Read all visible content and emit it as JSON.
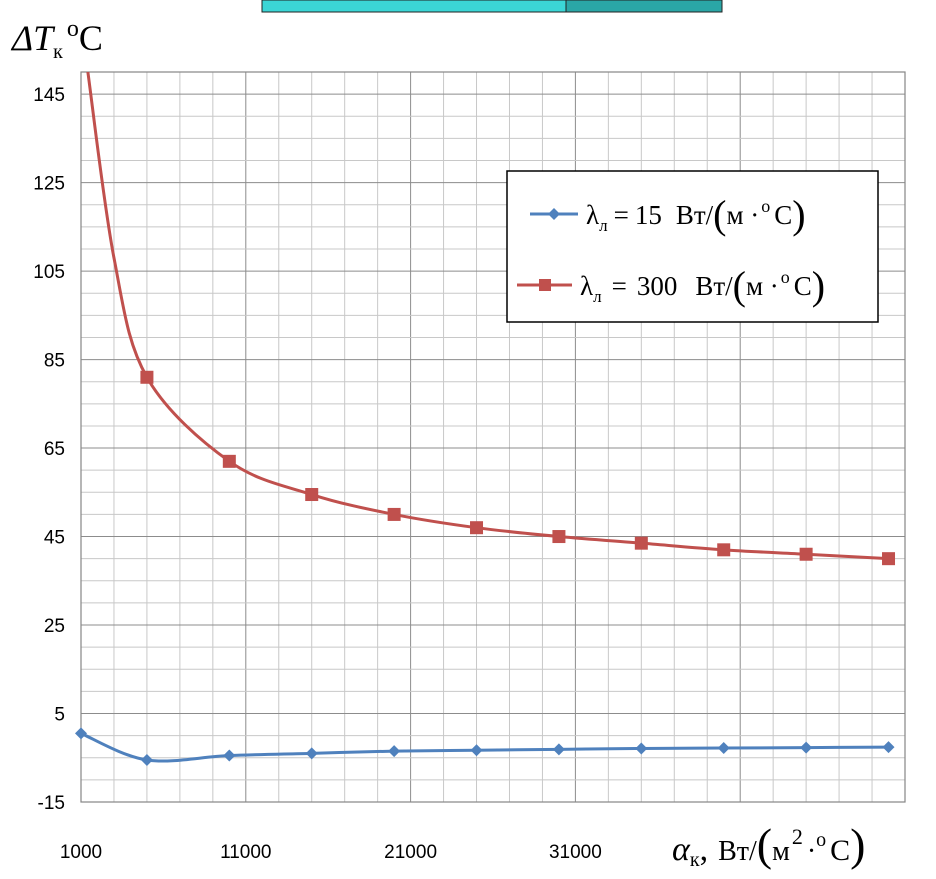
{
  "chart_data": {
    "type": "line",
    "ylabel": "ΔTк °C",
    "xlabel": "αк, Вт/(м² ·°C)",
    "xlim": [
      1000,
      51000
    ],
    "ylim": [
      -15,
      150
    ],
    "x_ticks": [
      "1000",
      "11000",
      "21000",
      "31000"
    ],
    "y_ticks": [
      "145",
      "125",
      "105",
      "85",
      "65",
      "45",
      "25",
      "5",
      "-15"
    ],
    "grid": true,
    "legend_position": "top-right",
    "series": [
      {
        "name": "λл = 15 Вт/(м ·° С)",
        "color": "#4f81bd",
        "marker": "diamond",
        "x": [
          1000,
          5000,
          10000,
          15000,
          20000,
          25000,
          30000,
          35000,
          40000,
          45000,
          50000
        ],
        "y": [
          0.5,
          -5.5,
          -4.5,
          -4.0,
          -3.5,
          -3.3,
          -3.1,
          -2.9,
          -2.8,
          -2.7,
          -2.6
        ]
      },
      {
        "name": "λл = 300 Вт/(м ·° С)",
        "color": "#c0504d",
        "marker": "square",
        "x": [
          5000,
          10000,
          15000,
          20000,
          25000,
          30000,
          35000,
          40000,
          45000,
          50000
        ],
        "y": [
          81,
          62,
          54.5,
          50,
          47,
          45,
          43.5,
          42,
          41,
          40
        ]
      }
    ]
  },
  "legend": {
    "lambda": "λ",
    "sub": "л",
    "eq": "=",
    "value_1": "15",
    "value_2": "300",
    "unit_pre": "Вт/",
    "unit_mid": "м ·",
    "unit_deg": "о",
    "unit_c": "С"
  },
  "y_title": {
    "delta_t": "ΔT",
    "sub": "к",
    "deg": "о",
    "c": "C"
  },
  "x_title": {
    "alpha": "α",
    "sub": "к",
    "comma": ",",
    "unit_pre": "Вт/",
    "m": "м",
    "sq": "2",
    "dot": "·",
    "deg": "о",
    "c": "С"
  }
}
